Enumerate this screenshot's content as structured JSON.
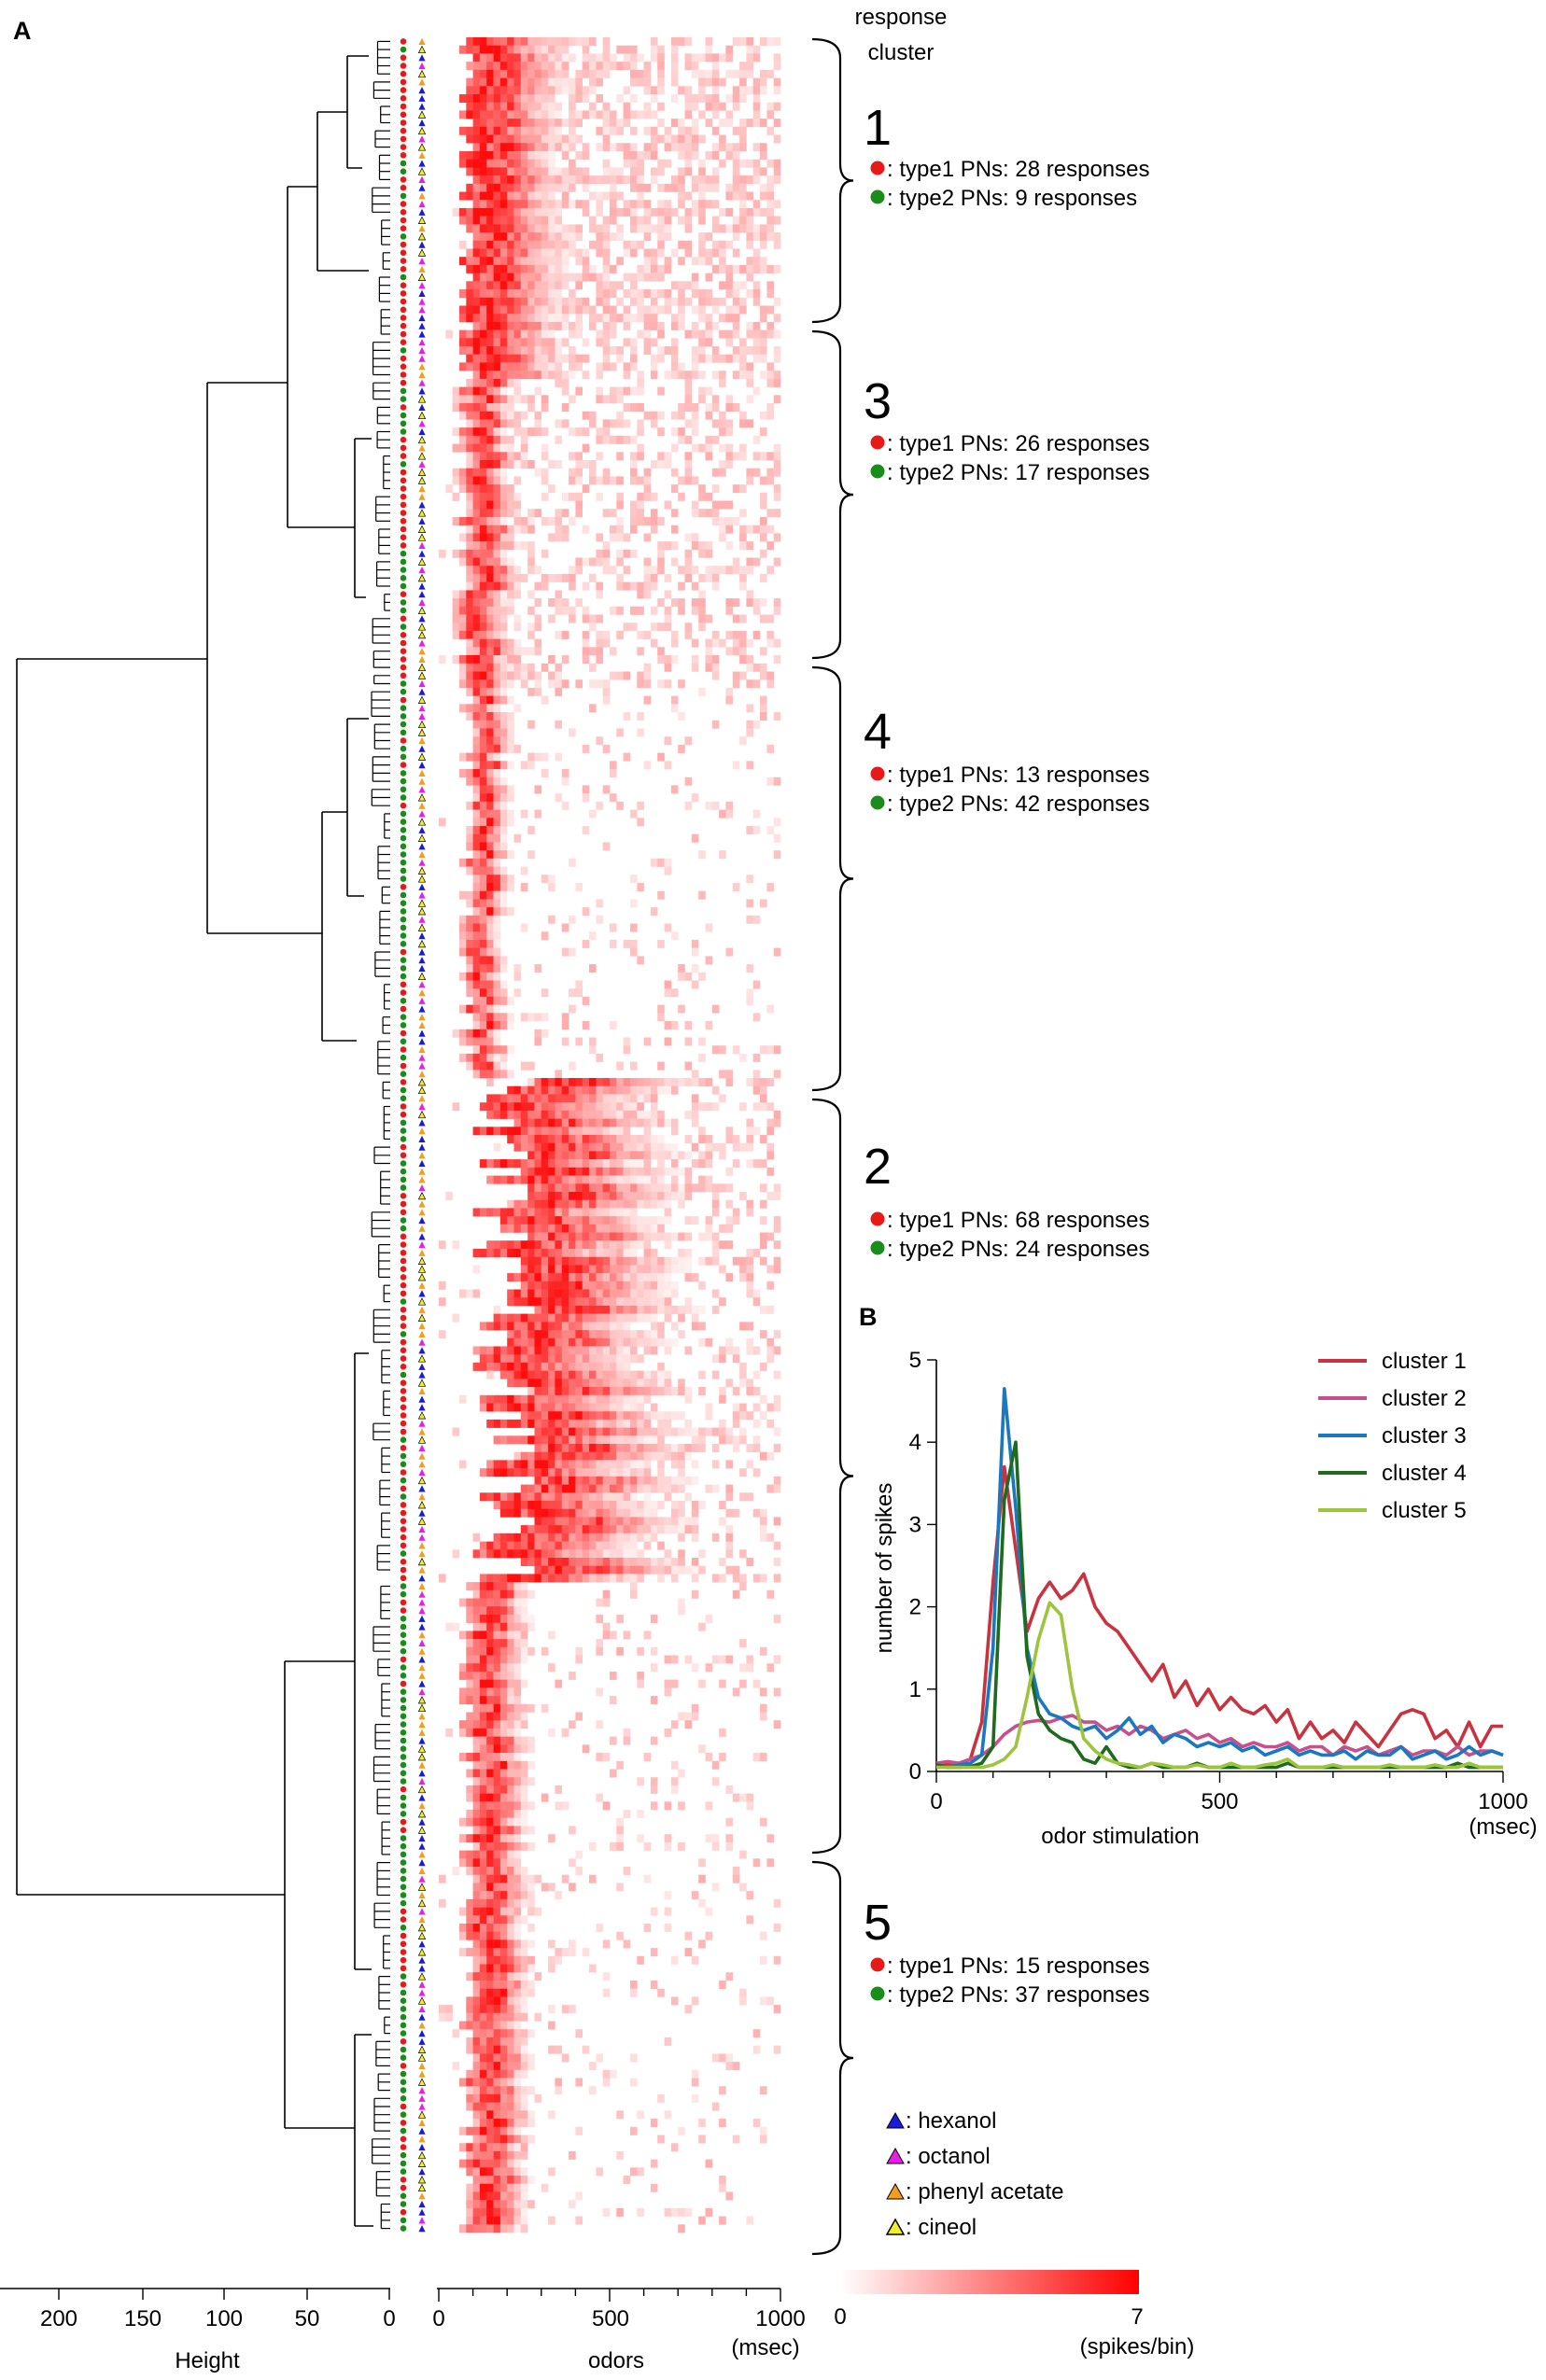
{
  "panel_a": {
    "label": "A",
    "header_line1": "response",
    "header_line2": "cluster",
    "clusters": [
      {
        "number": "1",
        "type1": "type1 PNs: 28 responses",
        "type2": "type2 PNs: 9 responses"
      },
      {
        "number": "3",
        "type1": "type1 PNs: 26 responses",
        "type2": "type2 PNs: 17 responses"
      },
      {
        "number": "4",
        "type1": "type1 PNs: 13 responses",
        "type2": "type2 PNs: 42 responses"
      },
      {
        "number": "2",
        "type1": "type1 PNs: 68 responses",
        "type2": "type2 PNs: 24 responses"
      },
      {
        "number": "5",
        "type1": "type1 PNs: 15 responses",
        "type2": "type2 PNs: 37 responses"
      }
    ],
    "odor_legend": [
      {
        "label": "hexanol",
        "color": "#1a1adc"
      },
      {
        "label": "octanol",
        "color": "#e81ee8"
      },
      {
        "label": "phenyl acetate",
        "color": "#f49c1c"
      },
      {
        "label": "cineol",
        "color": "#f2ee2a"
      }
    ],
    "dendro_axis": {
      "label": "Height",
      "ticks": [
        "200",
        "150",
        "100",
        "50",
        "0"
      ]
    },
    "heat_axis": {
      "label": "odors",
      "ticks": [
        "0",
        "500",
        "1000"
      ],
      "unit": "(msec)"
    },
    "colorbar": {
      "min": "0",
      "max": "7",
      "unit": "(spikes/bin)",
      "color_low": "#ffffff",
      "color_high": "#ff0000"
    },
    "colors": {
      "type1": "#e81919",
      "type2": "#1a8c1a"
    }
  },
  "chart_data": {
    "type": "line",
    "title": "",
    "xlabel": "odor stimulation",
    "xunit": "(msec)",
    "ylabel": "number of spikes",
    "xlim": [
      0,
      1000
    ],
    "ylim": [
      0,
      5
    ],
    "xticks": [
      "0",
      "500",
      "1000"
    ],
    "yticks": [
      "0",
      "1",
      "2",
      "3",
      "4",
      "5"
    ],
    "legend_position": "top-right",
    "x": [
      0,
      20,
      40,
      60,
      80,
      100,
      120,
      140,
      160,
      180,
      200,
      220,
      240,
      260,
      280,
      300,
      320,
      340,
      360,
      380,
      400,
      420,
      440,
      460,
      480,
      500,
      520,
      540,
      560,
      580,
      600,
      620,
      640,
      660,
      680,
      700,
      720,
      740,
      760,
      780,
      800,
      820,
      840,
      860,
      880,
      900,
      920,
      940,
      960,
      980,
      1000
    ],
    "series": [
      {
        "name": "cluster 1",
        "color": "#c8333f",
        "values": [
          0.1,
          0.08,
          0.1,
          0.15,
          0.6,
          2.3,
          3.7,
          2.7,
          1.7,
          2.1,
          2.3,
          2.1,
          2.2,
          2.4,
          2.0,
          1.8,
          1.7,
          1.5,
          1.3,
          1.1,
          1.3,
          0.9,
          1.1,
          0.8,
          1.0,
          0.75,
          0.9,
          0.75,
          0.7,
          0.8,
          0.6,
          0.75,
          0.4,
          0.6,
          0.4,
          0.5,
          0.35,
          0.6,
          0.45,
          0.3,
          0.5,
          0.7,
          0.75,
          0.7,
          0.4,
          0.5,
          0.3,
          0.6,
          0.3,
          0.55,
          0.55
        ]
      },
      {
        "name": "cluster 2",
        "color": "#c8508a",
        "values": [
          0.1,
          0.12,
          0.1,
          0.15,
          0.2,
          0.3,
          0.45,
          0.55,
          0.6,
          0.62,
          0.6,
          0.65,
          0.68,
          0.6,
          0.6,
          0.5,
          0.55,
          0.45,
          0.55,
          0.5,
          0.4,
          0.45,
          0.5,
          0.4,
          0.45,
          0.35,
          0.4,
          0.3,
          0.35,
          0.3,
          0.3,
          0.35,
          0.25,
          0.3,
          0.3,
          0.2,
          0.3,
          0.25,
          0.3,
          0.2,
          0.25,
          0.3,
          0.2,
          0.25,
          0.25,
          0.2,
          0.3,
          0.2,
          0.25,
          0.25,
          0.2
        ]
      },
      {
        "name": "cluster 3",
        "color": "#1a78c0",
        "values": [
          0.08,
          0.05,
          0.08,
          0.1,
          0.2,
          1.5,
          4.65,
          3.2,
          1.5,
          0.9,
          0.7,
          0.65,
          0.55,
          0.5,
          0.55,
          0.4,
          0.5,
          0.65,
          0.45,
          0.55,
          0.35,
          0.45,
          0.4,
          0.3,
          0.35,
          0.3,
          0.35,
          0.25,
          0.3,
          0.2,
          0.25,
          0.3,
          0.2,
          0.25,
          0.2,
          0.2,
          0.25,
          0.15,
          0.25,
          0.2,
          0.2,
          0.3,
          0.15,
          0.2,
          0.25,
          0.15,
          0.2,
          0.3,
          0.2,
          0.25,
          0.2
        ]
      },
      {
        "name": "cluster 4",
        "color": "#1e6a1e",
        "values": [
          0.08,
          0.05,
          0.05,
          0.06,
          0.1,
          0.3,
          3.3,
          4.0,
          1.4,
          0.7,
          0.5,
          0.4,
          0.35,
          0.15,
          0.1,
          0.3,
          0.1,
          0.05,
          0.05,
          0.1,
          0.05,
          0.05,
          0.05,
          0.1,
          0.05,
          0.05,
          0.05,
          0.05,
          0.05,
          0.05,
          0.05,
          0.1,
          0.05,
          0.05,
          0.05,
          0.05,
          0.05,
          0.05,
          0.05,
          0.05,
          0.05,
          0.05,
          0.05,
          0.05,
          0.05,
          0.05,
          0.1,
          0.05,
          0.05,
          0.05,
          0.05
        ]
      },
      {
        "name": "cluster 5",
        "color": "#9cc43c",
        "values": [
          0.05,
          0.05,
          0.05,
          0.05,
          0.05,
          0.08,
          0.15,
          0.3,
          0.9,
          1.6,
          2.05,
          1.9,
          1.0,
          0.4,
          0.25,
          0.15,
          0.1,
          0.08,
          0.05,
          0.1,
          0.08,
          0.05,
          0.05,
          0.08,
          0.05,
          0.05,
          0.1,
          0.05,
          0.05,
          0.08,
          0.1,
          0.15,
          0.05,
          0.05,
          0.05,
          0.08,
          0.05,
          0.05,
          0.05,
          0.05,
          0.08,
          0.05,
          0.05,
          0.05,
          0.08,
          0.05,
          0.05,
          0.1,
          0.05,
          0.05,
          0.05
        ]
      }
    ],
    "panel_label": "B"
  }
}
